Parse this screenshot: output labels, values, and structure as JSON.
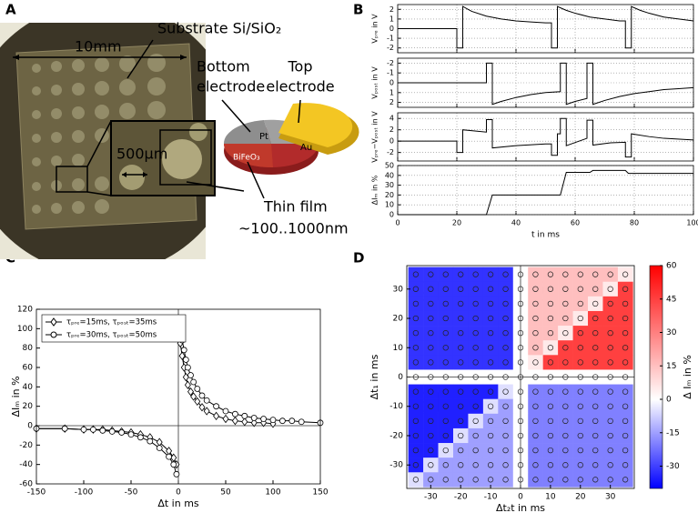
{
  "panel_labels": [
    "A",
    "B",
    "C",
    "D"
  ],
  "photo": {
    "substrate": "Substrate Si/SiO₂",
    "scale": "10mm",
    "bottom_electrode": [
      "Bottom",
      "electrode"
    ],
    "top_electrode": [
      "Top",
      "electrode"
    ],
    "pt": "Pt",
    "au": "Au",
    "bifeo3": "BiFeO₃",
    "zoom_scale": "500µm",
    "thin_film": [
      "Thin film",
      "~100..1000nm"
    ]
  },
  "chart_data": [
    {
      "type": "line",
      "ylabel": "Vₚᵣₑ in V",
      "color": "#000000",
      "grid": true,
      "x": [
        0,
        20,
        20,
        22,
        22,
        25,
        30,
        35,
        40,
        45,
        50,
        52,
        52,
        54,
        54,
        57,
        60,
        65,
        70,
        75,
        77,
        77,
        79,
        79,
        82,
        85,
        90,
        95,
        100
      ],
      "values": [
        0,
        0,
        -2,
        -2,
        2.3,
        1.8,
        1.3,
        1.0,
        0.8,
        0.7,
        0.6,
        0.6,
        -2,
        -2,
        2.3,
        1.9,
        1.6,
        1.2,
        1.0,
        0.8,
        0.8,
        -2,
        -2,
        2.3,
        1.9,
        1.6,
        1.2,
        1.0,
        0.8
      ],
      "xlim": [
        0,
        100
      ],
      "xticks": [
        0,
        20,
        40,
        60,
        80,
        100
      ],
      "ylim": [
        -2.5,
        2.5
      ],
      "yticks": [
        -2,
        -1,
        0,
        1,
        2
      ]
    },
    {
      "type": "line",
      "ylabel": "Vₚₒₛₜ in V",
      "color": "#000000",
      "grid": true,
      "yinvert": true,
      "x": [
        0,
        30,
        30,
        32,
        32,
        35,
        40,
        45,
        50,
        55,
        55,
        57,
        57,
        60,
        64,
        64,
        66,
        66,
        70,
        75,
        80,
        85,
        90,
        95,
        100
      ],
      "values": [
        0,
        0,
        -2,
        -2,
        2.2,
        1.9,
        1.5,
        1.2,
        1.0,
        0.9,
        -2,
        -2,
        2.2,
        1.9,
        1.6,
        -2,
        -2,
        2.2,
        1.8,
        1.4,
        1.1,
        0.9,
        0.7,
        0.6,
        0.5
      ],
      "xlim": [
        0,
        100
      ],
      "xticks": [
        0,
        20,
        40,
        60,
        80,
        100
      ],
      "ylim": [
        -2.5,
        2.5
      ],
      "yticks": [
        -2,
        -1,
        0,
        1,
        2
      ]
    },
    {
      "type": "line",
      "ylabel": "Vₚᵣₑ−Vₚₒₛₜ in V",
      "color": "#000000",
      "grid": true,
      "x": [
        0,
        20,
        20,
        22,
        22,
        30,
        30,
        32,
        32,
        40,
        50,
        52,
        52,
        54,
        54,
        55,
        55,
        57,
        57,
        64,
        64,
        66,
        66,
        72,
        77,
        77,
        79,
        79,
        85,
        90,
        100
      ],
      "values": [
        0,
        0,
        -2,
        -2,
        2,
        1.6,
        3.8,
        3.8,
        -1.2,
        -0.8,
        -0.5,
        -0.5,
        -2.5,
        -2.5,
        1.3,
        1.3,
        4,
        4,
        -0.8,
        0.5,
        3.7,
        3.7,
        -0.7,
        -0.3,
        -0.2,
        -2.8,
        -2.8,
        1.3,
        0.8,
        0.5,
        0.2
      ],
      "xlim": [
        0,
        100
      ],
      "xticks": [
        0,
        20,
        40,
        60,
        80,
        100
      ],
      "ylim": [
        -3.5,
        5
      ],
      "yticks": [
        -2,
        0,
        2,
        4
      ]
    },
    {
      "type": "line",
      "ylabel": "ΔIₘ in %",
      "xlabel": "t in ms",
      "color": "#000000",
      "grid": true,
      "x": [
        0,
        30,
        32,
        55,
        57,
        65,
        66,
        77,
        78,
        100
      ],
      "values": [
        0,
        0,
        20,
        20,
        43,
        43,
        45,
        45,
        42,
        42
      ],
      "xlim": [
        0,
        100
      ],
      "xticks": [
        0,
        20,
        40,
        60,
        80,
        100
      ],
      "ylim": [
        0,
        50
      ],
      "yticks": [
        0,
        10,
        20,
        30,
        40,
        50
      ]
    },
    {
      "type": "line",
      "xlabel": "Δt in ms",
      "ylabel": "ΔIₘ in %",
      "zero_lines": true,
      "legend": "upper-left",
      "series": [
        {
          "name": "τₚᵣₑ=15ms, τₚₒₛₜ=35ms",
          "color": "#000000",
          "marker": "diamond",
          "x": [
            -150,
            -120,
            -100,
            -90,
            -80,
            -70,
            -60,
            -50,
            -40,
            -30,
            -20,
            -10,
            -5,
            -2,
            0,
            2,
            4,
            6,
            8,
            10,
            13,
            16,
            20,
            25,
            30,
            40,
            50,
            60,
            70,
            80,
            90,
            100
          ],
          "values": [
            -3,
            -3,
            -4,
            -4,
            -4,
            -5,
            -6,
            -7,
            -9,
            -12,
            -17,
            -26,
            -33,
            -40,
            null,
            85,
            72,
            60,
            50,
            42,
            35,
            30,
            25,
            19,
            15,
            10,
            7,
            5,
            4,
            3,
            3,
            2
          ]
        },
        {
          "name": "τₚᵣₑ=30ms, τₚₒₛₜ=50ms",
          "color": "#000000",
          "marker": "circle",
          "x": [
            -150,
            -120,
            -100,
            -90,
            -80,
            -70,
            -60,
            -50,
            -40,
            -30,
            -20,
            -10,
            -5,
            -2,
            0,
            2,
            4,
            6,
            8,
            10,
            13,
            16,
            20,
            25,
            30,
            40,
            50,
            60,
            70,
            80,
            90,
            100,
            110,
            120,
            130,
            150
          ],
          "values": [
            -3,
            -3,
            -4,
            -4,
            -5,
            -6,
            -7,
            -9,
            -12,
            -16,
            -23,
            -32,
            -40,
            -50,
            null,
            104,
            88,
            78,
            68,
            60,
            52,
            45,
            38,
            31,
            26,
            20,
            15,
            12,
            10,
            8,
            7,
            6,
            5,
            5,
            4,
            3
          ]
        }
      ],
      "xlim": [
        -150,
        150
      ],
      "xticks": [
        -150,
        -100,
        -50,
        0,
        50,
        100,
        150
      ],
      "ylim": [
        -60,
        120
      ],
      "yticks": [
        -60,
        -40,
        -20,
        0,
        20,
        40,
        60,
        80,
        100,
        120
      ]
    },
    {
      "type": "heatmap",
      "xlabel": "Δt₂t in ms",
      "ylabel": "Δt₁ in ms",
      "colorbar_label": "Δ Iₘ in %",
      "zero_lines": true,
      "colormap": {
        "low": "#0000ff",
        "mid": "#ffffff",
        "high": "#ff0000"
      },
      "x": [
        -35,
        -30,
        -25,
        -20,
        -15,
        -10,
        -5,
        0,
        5,
        10,
        15,
        20,
        25,
        30,
        35
      ],
      "y": [
        35,
        30,
        25,
        20,
        15,
        10,
        5,
        0,
        -5,
        -10,
        -15,
        -20,
        -25,
        -30,
        -35
      ],
      "z": [
        [
          -32,
          -32,
          -32,
          -32,
          -32,
          -32,
          -32,
          0,
          15,
          15,
          15,
          15,
          15,
          15,
          5
        ],
        [
          -32,
          -32,
          -32,
          -32,
          -32,
          -32,
          -32,
          0,
          15,
          15,
          15,
          15,
          15,
          5,
          45
        ],
        [
          -32,
          -32,
          -32,
          -32,
          -32,
          -32,
          -32,
          0,
          15,
          15,
          15,
          15,
          5,
          45,
          45
        ],
        [
          -32,
          -32,
          -32,
          -32,
          -32,
          -32,
          -32,
          0,
          15,
          15,
          15,
          5,
          45,
          45,
          45
        ],
        [
          -32,
          -32,
          -32,
          -32,
          -32,
          -32,
          -32,
          0,
          15,
          15,
          5,
          45,
          45,
          45,
          45
        ],
        [
          -32,
          -32,
          -32,
          -32,
          -32,
          -32,
          -32,
          0,
          15,
          5,
          45,
          45,
          45,
          45,
          45
        ],
        [
          -32,
          -32,
          -32,
          -32,
          -32,
          -32,
          -32,
          0,
          5,
          45,
          45,
          45,
          45,
          45,
          45
        ],
        [
          0,
          0,
          0,
          0,
          0,
          0,
          0,
          0,
          0,
          0,
          0,
          0,
          0,
          0,
          0
        ],
        [
          -35,
          -35,
          -35,
          -35,
          -35,
          -35,
          -5,
          0,
          -20,
          -20,
          -20,
          -20,
          -20,
          -20,
          -20
        ],
        [
          -35,
          -35,
          -35,
          -35,
          -35,
          -5,
          -15,
          0,
          -20,
          -20,
          -20,
          -20,
          -20,
          -20,
          -20
        ],
        [
          -35,
          -35,
          -35,
          -35,
          -5,
          -15,
          -15,
          0,
          -20,
          -20,
          -20,
          -20,
          -20,
          -20,
          -20
        ],
        [
          -35,
          -35,
          -35,
          -5,
          -15,
          -15,
          -15,
          0,
          -20,
          -20,
          -20,
          -20,
          -20,
          -20,
          -20
        ],
        [
          -35,
          -35,
          -5,
          -15,
          -15,
          -15,
          -15,
          0,
          -20,
          -20,
          -20,
          -20,
          -20,
          -20,
          -20
        ],
        [
          -35,
          -5,
          -15,
          -15,
          -15,
          -15,
          -15,
          0,
          -20,
          -20,
          -20,
          -20,
          -20,
          -20,
          -20
        ],
        [
          -5,
          -15,
          -15,
          -15,
          -15,
          -15,
          -15,
          0,
          -20,
          -20,
          -20,
          -20,
          -20,
          -20,
          -20
        ]
      ],
      "xlim": [
        -38,
        38
      ],
      "xticks": [
        -30,
        -20,
        -10,
        0,
        10,
        20,
        30
      ],
      "ylim": [
        -38,
        38
      ],
      "yticks": [
        -30,
        -20,
        -10,
        0,
        10,
        20,
        30
      ],
      "zlim": [
        -40,
        60
      ],
      "zticks": [
        -30,
        -15,
        0,
        15,
        30,
        45,
        60
      ]
    }
  ]
}
